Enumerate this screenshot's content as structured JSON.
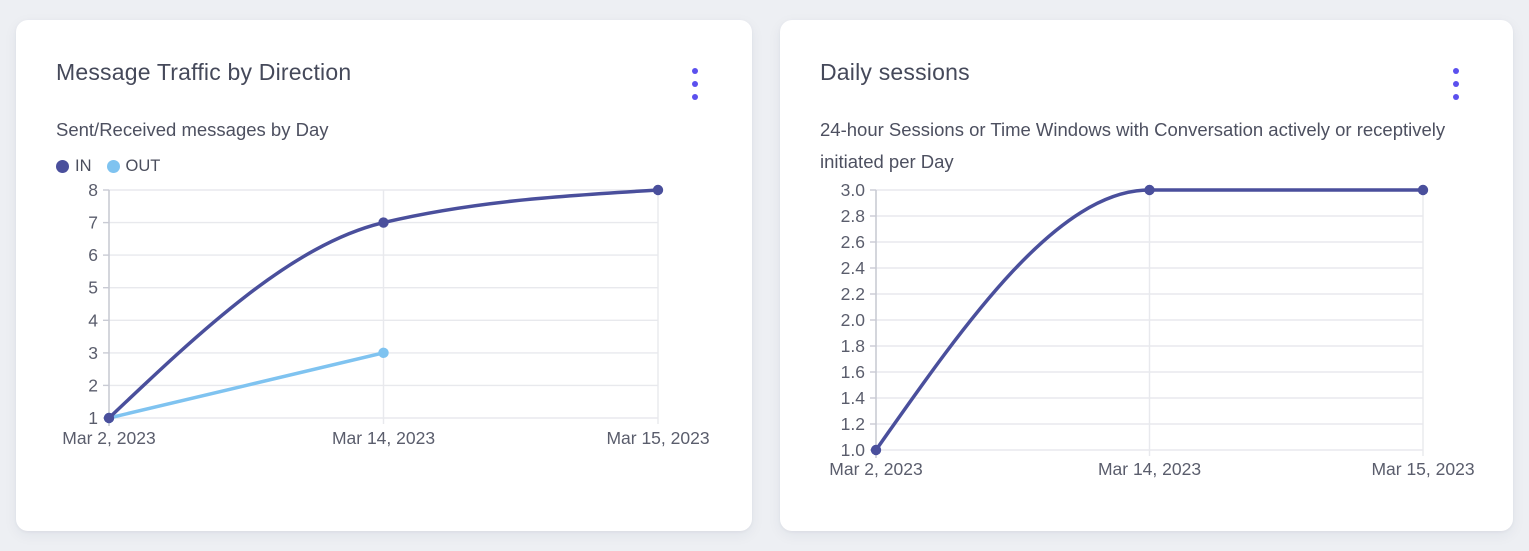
{
  "page": {
    "background": "#edeff3"
  },
  "colors": {
    "accent": "#5b50ee",
    "card_background": "#ffffff",
    "title_text": "#45495a",
    "subtitle_text": "#4d5060",
    "tick_text": "#5a5d6c",
    "grid": "#e8e9ed",
    "axis": "#c9cbd4",
    "series_in": "#4a4f9c",
    "series_out": "#7fc3f0"
  },
  "cards": [
    {
      "title": "Message Traffic by Direction",
      "subtitle": "Sent/Received messages by Day",
      "menu_icon": "kebab-vertical-icon"
    },
    {
      "title": "Daily sessions",
      "subtitle": "24-hour Sessions or Time Windows with Conversation actively or receptively initiated per Day",
      "menu_icon": "kebab-vertical-icon"
    }
  ],
  "chart_data": [
    {
      "type": "line",
      "title": "Message Traffic by Direction",
      "subtitle": "Sent/Received messages by Day",
      "categories": [
        "Mar 2, 2023",
        "Mar 14, 2023",
        "Mar 15, 2023"
      ],
      "series": [
        {
          "name": "IN",
          "color": "#4a4f9c",
          "values": [
            1,
            7,
            8
          ]
        },
        {
          "name": "OUT",
          "color": "#7fc3f0",
          "values": [
            1,
            3,
            null
          ]
        }
      ],
      "ylim": [
        1,
        8
      ],
      "ytick_step": 1,
      "ytick_decimals": 0,
      "grid": true,
      "legend_position": "top-left",
      "curve": "monotone"
    },
    {
      "type": "line",
      "title": "Daily sessions",
      "subtitle": "24-hour Sessions or Time Windows with Conversation actively or receptively initiated per Day",
      "categories": [
        "Mar 2, 2023",
        "Mar 14, 2023",
        "Mar 15, 2023"
      ],
      "series": [
        {
          "name": "Daily sessions",
          "color": "#4a4f9c",
          "values": [
            1.0,
            3.0,
            3.0
          ]
        }
      ],
      "ylim": [
        1.0,
        3.0
      ],
      "ytick_step": 0.2,
      "ytick_decimals": 1,
      "grid": true,
      "legend_position": "none",
      "curve": "monotone"
    }
  ]
}
